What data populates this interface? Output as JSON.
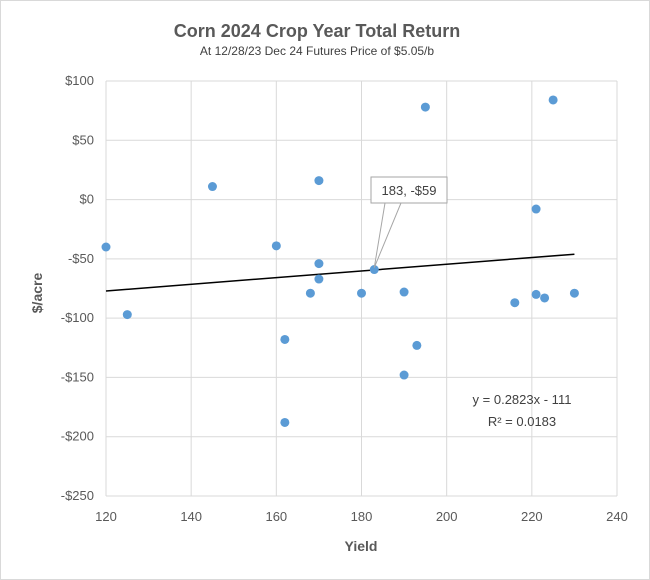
{
  "chart_data": {
    "type": "scatter",
    "title": "Corn 2024  Crop Year Total Return",
    "subtitle": "At 12/28/23 Dec 24 Futures Price of $5.05/b",
    "xlabel": "Yield",
    "ylabel": "$/acre",
    "xlim": [
      120,
      240
    ],
    "ylim": [
      -250,
      100
    ],
    "x_ticks": [
      120,
      140,
      160,
      180,
      200,
      220,
      240
    ],
    "y_ticks": [
      100,
      50,
      0,
      -50,
      -100,
      -150,
      -200,
      -250
    ],
    "x_tick_labels": [
      "120",
      "140",
      "160",
      "180",
      "200",
      "220",
      "240"
    ],
    "y_tick_labels": [
      "$100",
      "$50",
      "$0",
      "-$50",
      "-$100",
      "-$150",
      "-$200",
      "-$250"
    ],
    "grid": true,
    "marker_color": "#5b9bd5",
    "points": [
      {
        "x": 120,
        "y": -40
      },
      {
        "x": 125,
        "y": -97
      },
      {
        "x": 145,
        "y": 11
      },
      {
        "x": 160,
        "y": -39
      },
      {
        "x": 162,
        "y": -118
      },
      {
        "x": 162,
        "y": -188
      },
      {
        "x": 168,
        "y": -79
      },
      {
        "x": 170,
        "y": -54
      },
      {
        "x": 170,
        "y": -67
      },
      {
        "x": 170,
        "y": 16
      },
      {
        "x": 180,
        "y": -79
      },
      {
        "x": 183,
        "y": -59
      },
      {
        "x": 190,
        "y": -78
      },
      {
        "x": 190,
        "y": -148
      },
      {
        "x": 193,
        "y": -123
      },
      {
        "x": 195,
        "y": 78
      },
      {
        "x": 216,
        "y": -87
      },
      {
        "x": 221,
        "y": -8
      },
      {
        "x": 221,
        "y": -80
      },
      {
        "x": 223,
        "y": -83
      },
      {
        "x": 225,
        "y": 84
      },
      {
        "x": 230,
        "y": -79
      }
    ],
    "trendline": {
      "slope": 0.2823,
      "intercept": -111,
      "x_range": [
        120,
        230
      ],
      "color": "#000000",
      "equation": "y = 0.2823x - 111",
      "r_squared": "R² = 0.0183"
    },
    "annotation": {
      "text": "183, -$59",
      "x": 183,
      "y": -59
    }
  }
}
